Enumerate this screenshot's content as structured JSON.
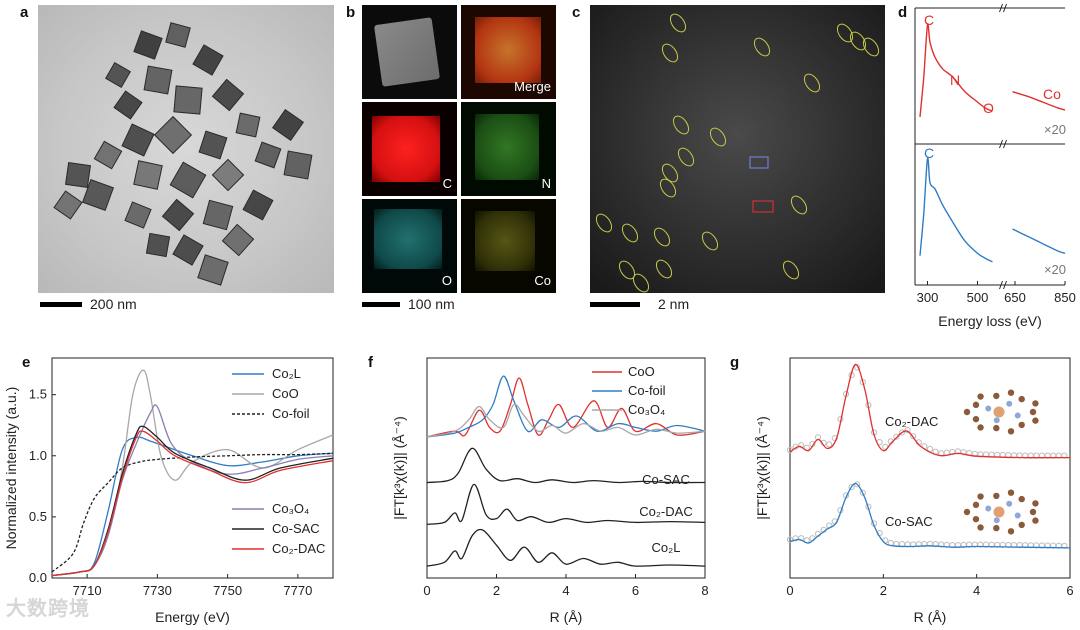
{
  "panels": {
    "a": {
      "letter": "a",
      "scale_label": "200 nm"
    },
    "b": {
      "letter": "b",
      "scale_label": "100 nm",
      "tiles": [
        "",
        "Merge",
        "C",
        "N",
        "O",
        "Co"
      ]
    },
    "c": {
      "letter": "c",
      "scale_label": "2 nm"
    },
    "d": {
      "letter": "d"
    },
    "e": {
      "letter": "e"
    },
    "f": {
      "letter": "f"
    },
    "g": {
      "letter": "g"
    }
  },
  "colors": {
    "red": "#e0312f",
    "blue": "#2f7dc5",
    "gray": "#a8a8a8",
    "black": "#222222",
    "purple": "#8a7fb0",
    "yellow": "#c8c84a"
  },
  "watermark": "大数跨境",
  "chart_data": [
    {
      "id": "d",
      "type": "line",
      "title": "",
      "xlabel": "Energy loss (eV)",
      "ylabel": "",
      "xlim": [
        250,
        850
      ],
      "xticks": [
        "300",
        "500",
        "650",
        "850"
      ],
      "series": [
        {
          "name": "red spectrum",
          "edges": [
            "C",
            "N",
            "O",
            "Co"
          ],
          "scale": "×20",
          "x": [
            270,
            285,
            300,
            310,
            330,
            360,
            400,
            450,
            500,
            530,
            560,
            640,
            700,
            760,
            820,
            850
          ],
          "y": [
            0.2,
            0.55,
            1.0,
            0.85,
            0.72,
            0.62,
            0.55,
            0.42,
            0.33,
            0.28,
            0.25,
            0.42,
            0.38,
            0.33,
            0.28,
            0.26
          ]
        },
        {
          "name": "blue spectrum",
          "edges": [
            "C"
          ],
          "scale": "×20",
          "x": [
            270,
            285,
            300,
            310,
            330,
            360,
            400,
            450,
            500,
            530,
            560,
            640,
            700,
            760,
            820,
            850
          ],
          "y": [
            0.2,
            0.55,
            1.0,
            0.8,
            0.75,
            0.62,
            0.48,
            0.32,
            0.22,
            0.18,
            0.15,
            0.42,
            0.36,
            0.3,
            0.24,
            0.22
          ]
        }
      ]
    },
    {
      "id": "e",
      "type": "line",
      "xlabel": "Energy (eV)",
      "ylabel": "Normalized intensity (a.u.)",
      "xlim": [
        7700,
        7780
      ],
      "ylim": [
        0.0,
        1.8
      ],
      "xticks": [
        "7710",
        "7730",
        "7750",
        "7770"
      ],
      "yticks": [
        "0.0",
        "0.5",
        "1.0",
        "1.5"
      ],
      "series": [
        {
          "name": "Co₂L",
          "color": "blue",
          "x": [
            7700,
            7708,
            7712,
            7716,
            7720,
            7724,
            7728,
            7732,
            7740,
            7750,
            7760,
            7770,
            7780
          ],
          "y": [
            0.02,
            0.05,
            0.12,
            0.55,
            1.05,
            1.15,
            1.12,
            1.08,
            1.0,
            0.92,
            0.95,
            1.0,
            1.02
          ]
        },
        {
          "name": "CoO",
          "color": "gray",
          "x": [
            7700,
            7708,
            7712,
            7716,
            7720,
            7723,
            7726,
            7728,
            7731,
            7735,
            7740,
            7750,
            7760,
            7770,
            7780
          ],
          "y": [
            0.02,
            0.05,
            0.1,
            0.35,
            0.9,
            1.5,
            1.7,
            1.5,
            1.0,
            0.8,
            0.95,
            1.05,
            0.9,
            1.05,
            1.17
          ]
        },
        {
          "name": "Co-foil",
          "color": "black",
          "dashed": true,
          "x": [
            7700,
            7706,
            7709,
            7712,
            7716,
            7720,
            7725,
            7730,
            7740,
            7750,
            7760,
            7770,
            7780
          ],
          "y": [
            0.05,
            0.2,
            0.45,
            0.65,
            0.78,
            0.9,
            0.95,
            0.97,
            0.99,
            1.0,
            1.01,
            1.01,
            1.02
          ]
        },
        {
          "name": "Co₃O₄",
          "color": "purple",
          "x": [
            7700,
            7708,
            7712,
            7716,
            7720,
            7724,
            7728,
            7730,
            7734,
            7740,
            7750,
            7760,
            7770,
            7780
          ],
          "y": [
            0.02,
            0.05,
            0.1,
            0.35,
            0.8,
            1.1,
            1.35,
            1.4,
            1.1,
            0.95,
            0.85,
            0.9,
            0.97,
            1.0
          ]
        },
        {
          "name": "Co-SAC",
          "color": "black",
          "x": [
            7700,
            7708,
            7712,
            7716,
            7720,
            7724,
            7726,
            7730,
            7735,
            7745,
            7755,
            7765,
            7780
          ],
          "y": [
            0.02,
            0.05,
            0.1,
            0.4,
            0.85,
            1.18,
            1.24,
            1.15,
            1.02,
            0.9,
            0.8,
            0.9,
            0.98
          ]
        },
        {
          "name": "Co₂-DAC",
          "color": "red",
          "x": [
            7700,
            7708,
            7712,
            7716,
            7720,
            7724,
            7726,
            7730,
            7735,
            7745,
            7755,
            7765,
            7780
          ],
          "y": [
            0.02,
            0.05,
            0.1,
            0.38,
            0.82,
            1.15,
            1.2,
            1.12,
            1.0,
            0.88,
            0.78,
            0.88,
            0.96
          ]
        }
      ]
    },
    {
      "id": "f",
      "type": "line",
      "xlabel": "R (Å)",
      "ylabel": "|FT[k³χ(k)]| (Å⁻⁴)",
      "xlim": [
        0,
        8
      ],
      "xticks": [
        "0",
        "2",
        "4",
        "6",
        "8"
      ],
      "series": [
        {
          "name": "CoO",
          "color": "red",
          "offset": 3.4,
          "x": [
            0,
            0.8,
            1.1,
            1.5,
            1.8,
            2.1,
            2.4,
            2.65,
            2.9,
            3.2,
            3.5,
            3.8,
            4.2,
            4.8,
            5.2,
            5.6,
            6.0,
            6.6,
            7.2,
            8
          ],
          "y": [
            0.05,
            0.2,
            0.1,
            0.75,
            0.3,
            0.2,
            0.9,
            1.6,
            0.9,
            0.1,
            0.5,
            0.9,
            0.3,
            1.0,
            0.3,
            0.8,
            0.2,
            0.4,
            0.1,
            0.2
          ]
        },
        {
          "name": "Co-foil",
          "color": "blue",
          "offset": 3.4,
          "x": [
            0,
            0.8,
            1.2,
            1.6,
            1.9,
            2.2,
            2.5,
            2.9,
            3.3,
            3.8,
            4.3,
            4.9,
            5.5,
            6.0,
            6.6,
            7.2,
            8
          ],
          "y": [
            0.05,
            0.15,
            0.3,
            0.5,
            0.9,
            1.65,
            1.0,
            0.2,
            0.5,
            0.3,
            0.6,
            0.2,
            0.4,
            0.3,
            0.2,
            0.35,
            0.2
          ]
        },
        {
          "name": "Co₃O₄",
          "color": "gray",
          "offset": 3.4,
          "x": [
            0,
            0.8,
            1.2,
            1.5,
            1.8,
            2.2,
            2.5,
            2.8,
            3.2,
            3.6,
            4.0,
            4.5,
            5.0,
            5.5,
            6.0,
            6.6,
            7.2,
            8
          ],
          "y": [
            0.05,
            0.2,
            0.5,
            0.85,
            0.5,
            0.3,
            0.9,
            0.6,
            0.2,
            0.35,
            0.15,
            0.4,
            0.2,
            0.3,
            0.1,
            0.25,
            0.15,
            0.2
          ]
        },
        {
          "name": "Co-SAC",
          "color": "black",
          "offset": 2.2,
          "x": [
            0,
            0.6,
            0.9,
            1.3,
            1.7,
            2.1,
            2.6,
            3.1,
            3.6,
            4.2,
            4.8,
            5.5,
            6.2,
            7.0,
            8
          ],
          "y": [
            0.05,
            0.1,
            0.3,
            0.95,
            0.4,
            0.1,
            0.15,
            0.05,
            0.12,
            0.05,
            0.1,
            0.05,
            0.08,
            0.05,
            0.05
          ]
        },
        {
          "name": "Co₂-DAC",
          "color": "black",
          "offset": 1.1,
          "x": [
            0,
            0.5,
            0.8,
            1.0,
            1.35,
            1.7,
            2.0,
            2.3,
            2.6,
            3.0,
            3.5,
            4.0,
            4.6,
            5.2,
            6.0,
            7.0,
            8
          ],
          "y": [
            0.05,
            0.1,
            0.35,
            0.15,
            1.1,
            0.3,
            0.2,
            0.45,
            0.15,
            0.25,
            0.1,
            0.2,
            0.1,
            0.15,
            0.1,
            0.12,
            0.1
          ]
        },
        {
          "name": "Co₂L",
          "color": "black",
          "offset": 0.0,
          "x": [
            0,
            0.5,
            0.8,
            1.0,
            1.3,
            1.6,
            2.0,
            2.4,
            2.8,
            3.2,
            3.6,
            4.0,
            4.5,
            5.0,
            5.5,
            6.0,
            7.0,
            8
          ],
          "y": [
            0.05,
            0.15,
            0.45,
            0.25,
            0.85,
            1.0,
            0.6,
            0.2,
            0.55,
            0.15,
            0.4,
            0.1,
            0.25,
            0.1,
            0.15,
            0.05,
            0.08,
            0.05
          ]
        }
      ],
      "labels": [
        "CoO",
        "Co-foil",
        "Co₃O₄",
        "Co-SAC",
        "Co₂-DAC",
        "Co₂L"
      ]
    },
    {
      "id": "g",
      "type": "line",
      "xlabel": "R (Å)",
      "ylabel": "|FT[k³χ(k)]| (Å⁻⁴)",
      "xlim": [
        0,
        6
      ],
      "xticks": [
        "0",
        "2",
        "4",
        "6"
      ],
      "series": [
        {
          "name": "Co₂-DAC",
          "color": "red",
          "offset": 1.3,
          "x": [
            0,
            0.2,
            0.4,
            0.6,
            0.8,
            1.0,
            1.2,
            1.4,
            1.6,
            1.8,
            2.0,
            2.2,
            2.5,
            2.8,
            3.2,
            3.6,
            4.0,
            5.0,
            6.0
          ],
          "y": [
            0.1,
            0.18,
            0.12,
            0.28,
            0.15,
            0.3,
            0.9,
            1.35,
            1.0,
            0.35,
            0.12,
            0.25,
            0.4,
            0.18,
            0.05,
            0.08,
            0.04,
            0.02,
            0.02
          ]
        },
        {
          "name": "Co-SAC",
          "color": "blue",
          "offset": 0.0,
          "x": [
            0,
            0.2,
            0.4,
            0.6,
            0.8,
            1.0,
            1.2,
            1.4,
            1.6,
            1.8,
            2.0,
            2.2,
            2.6,
            3.0,
            3.5,
            4.0,
            5.0,
            6.0
          ],
          "y": [
            0.12,
            0.15,
            0.1,
            0.2,
            0.3,
            0.4,
            0.75,
            0.95,
            0.75,
            0.35,
            0.12,
            0.06,
            0.05,
            0.06,
            0.04,
            0.05,
            0.04,
            0.03
          ]
        }
      ],
      "labels": [
        "Co₂-DAC",
        "Co-SAC"
      ]
    }
  ]
}
